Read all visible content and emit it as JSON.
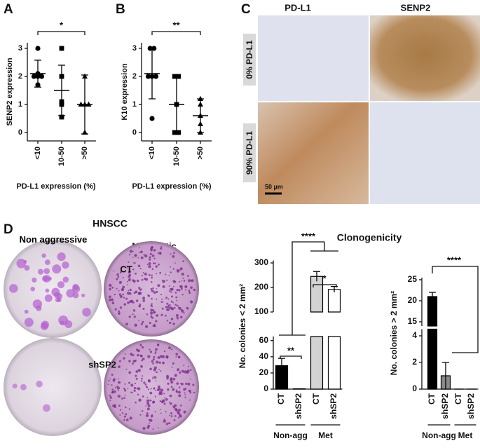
{
  "panel_labels": [
    "A",
    "B",
    "C",
    "D"
  ],
  "panel_c": {
    "columns": [
      "PD-L1",
      "SENP2"
    ],
    "rows": [
      "0% PD-L1",
      "90% PD-L1"
    ],
    "scale_bar": "50 µm"
  },
  "panel_d": {
    "title": "HNSCC",
    "columns": [
      "Non aggressive",
      "Metastatic"
    ],
    "rows": [
      "CT",
      "shSP2"
    ],
    "chart_heading": "Clonogenicity"
  },
  "chart_data": [
    {
      "type": "dotplot",
      "y_label": "SENP2 expression",
      "x_label": "PD-L1 expression (%)",
      "categories": [
        "<10",
        "10-50",
        ">50"
      ],
      "values": [
        [
          3,
          2.1,
          2,
          2,
          2,
          1.7
        ],
        [
          3,
          2,
          1.1,
          1,
          0.55
        ],
        [
          2,
          1,
          1,
          1,
          0
        ]
      ],
      "means": [
        2.1,
        1.5,
        1.0
      ],
      "errors": [
        0.48,
        0.9,
        1.05
      ],
      "markers": [
        "circle",
        "square",
        "triangle"
      ],
      "color": "#000000",
      "ylim": [
        -0.3,
        3.2
      ],
      "yticks": [
        0,
        1,
        2,
        3
      ],
      "annotations": [
        "*"
      ]
    },
    {
      "type": "dotplot",
      "y_label": "K10 expression",
      "x_label": "PD-L1 expression (%)",
      "categories": [
        "<10",
        "10-50",
        ">50"
      ],
      "values": [
        [
          3,
          3,
          2,
          2,
          2,
          0.5
        ],
        [
          2,
          2,
          1,
          0,
          0
        ],
        [
          1.2,
          1,
          0.6,
          0.3,
          0
        ]
      ],
      "means": [
        2.1,
        1.0,
        0.6
      ],
      "errors": [
        0.9,
        1.0,
        0.6
      ],
      "markers": [
        "circle",
        "square",
        "triangle"
      ],
      "color": "#000000",
      "ylim": [
        -0.3,
        3.2
      ],
      "yticks": [
        0,
        1,
        2,
        3
      ],
      "annotations": [
        "**"
      ]
    },
    {
      "type": "broken_bar",
      "y_label": "No. colonies < 2 mm²",
      "categories": [
        "CT",
        "shSP2",
        "CT",
        "shSP2"
      ],
      "groups": [
        "Non-agg",
        "Met"
      ],
      "values": [
        29,
        0.5,
        245,
        192
      ],
      "errors": [
        9,
        0,
        20,
        12
      ],
      "colors": [
        "#000000",
        "#000000",
        "#d3d3d3",
        "#ffffff"
      ],
      "segments": [
        {
          "ylim": [
            0,
            65
          ],
          "yticks": [
            0,
            20,
            40,
            60
          ]
        },
        {
          "ylim": [
            100,
            310
          ],
          "yticks": [
            100,
            200,
            300
          ]
        }
      ],
      "annotations": [
        "****",
        "**",
        "*"
      ]
    },
    {
      "type": "broken_bar",
      "y_label": "No. colonies > 2 mm²",
      "categories": [
        "CT",
        "shSP2",
        "CT",
        "shSP2"
      ],
      "groups": [
        "Non-agg",
        "Met"
      ],
      "values": [
        21,
        1,
        0,
        0
      ],
      "errors": [
        1,
        1,
        0,
        0
      ],
      "colors": [
        "#000000",
        "#8a8a8a",
        "#000000",
        "#ffffff"
      ],
      "segments": [
        {
          "ylim": [
            0,
            4.5
          ],
          "yticks": [
            0,
            2,
            4
          ]
        },
        {
          "ylim": [
            14,
            25.5
          ],
          "yticks": [
            15,
            20,
            25
          ]
        }
      ],
      "annotations": [
        "****"
      ]
    }
  ]
}
